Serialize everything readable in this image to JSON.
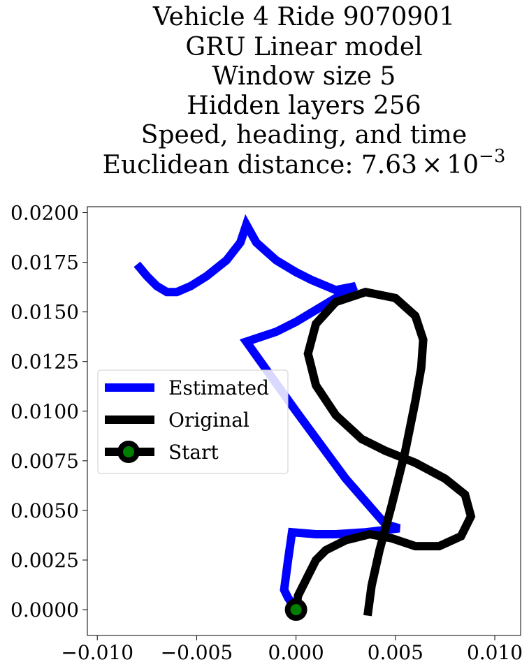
{
  "chart_data": {
    "type": "line",
    "title": {
      "lines": [
        "Vehicle 4 Ride 9070901",
        "GRU Linear model",
        "Window size 5",
        "Hidden layers 256",
        "Speed, heading, and time"
      ],
      "last_prefix": "Euclidean distance: 7.63",
      "last_times": "×",
      "last_base": "10",
      "last_exp": "−3"
    },
    "xlabel": "",
    "ylabel": "",
    "xlim": [
      -0.0105,
      0.0113
    ],
    "ylim": [
      -0.0013,
      0.0203
    ],
    "xticks": [
      -0.01,
      -0.005,
      0.0,
      0.005,
      0.01
    ],
    "xtick_labels": [
      "−0.010",
      "−0.005",
      "0.000",
      "0.005",
      "0.010"
    ],
    "yticks": [
      0.0,
      0.0025,
      0.005,
      0.0075,
      0.01,
      0.0125,
      0.015,
      0.0175,
      0.02
    ],
    "ytick_labels": [
      "0.0000",
      "0.0025",
      "0.0050",
      "0.0075",
      "0.0100",
      "0.0125",
      "0.0150",
      "0.0175",
      "0.0200"
    ],
    "grid": false,
    "legend_position": "center-left",
    "series": [
      {
        "name": "Estimated",
        "color": "#0000ff",
        "points": [
          [
            -0.008,
            0.0174
          ],
          [
            -0.0075,
            0.0168
          ],
          [
            -0.007,
            0.0163
          ],
          [
            -0.0065,
            0.016
          ],
          [
            -0.006,
            0.016
          ],
          [
            -0.0053,
            0.0163
          ],
          [
            -0.0045,
            0.0168
          ],
          [
            -0.0035,
            0.0176
          ],
          [
            -0.0028,
            0.0185
          ],
          [
            -0.0025,
            0.0194
          ],
          [
            -0.002,
            0.0185
          ],
          [
            -0.001,
            0.0176
          ],
          [
            0.0,
            0.017
          ],
          [
            0.0008,
            0.0166
          ],
          [
            0.002,
            0.0161
          ],
          [
            0.003,
            0.0163
          ],
          [
            0.002,
            0.0157
          ],
          [
            0.001,
            0.0151
          ],
          [
            0.0,
            0.0145
          ],
          [
            -0.001,
            0.014
          ],
          [
            -0.0025,
            0.0135
          ],
          [
            0.0,
            0.01
          ],
          [
            0.0025,
            0.0066
          ],
          [
            0.0045,
            0.0043
          ],
          [
            0.0052,
            0.0041
          ],
          [
            0.0035,
            0.0039
          ],
          [
            0.002,
            0.0038
          ],
          [
            0.001,
            0.0038
          ],
          [
            -0.0002,
            0.0039
          ],
          [
            -0.0004,
            0.0025
          ],
          [
            -0.0006,
            0.001
          ],
          [
            -0.0004,
            0.0006
          ],
          [
            0.0,
            0.0
          ]
        ]
      },
      {
        "name": "Original",
        "color": "#000000",
        "points": [
          [
            0.0,
            0.0
          ],
          [
            0.0001,
            0.0007
          ],
          [
            0.0005,
            0.0015
          ],
          [
            0.001,
            0.0025
          ],
          [
            0.0015,
            0.003
          ],
          [
            0.0025,
            0.0035
          ],
          [
            0.0037,
            0.0038
          ],
          [
            0.0048,
            0.0036
          ],
          [
            0.006,
            0.0032
          ],
          [
            0.0072,
            0.0032
          ],
          [
            0.0083,
            0.0037
          ],
          [
            0.0088,
            0.0047
          ],
          [
            0.0085,
            0.0058
          ],
          [
            0.0075,
            0.0066
          ],
          [
            0.006,
            0.0074
          ],
          [
            0.0045,
            0.008
          ],
          [
            0.0033,
            0.0086
          ],
          [
            0.002,
            0.0098
          ],
          [
            0.001,
            0.0113
          ],
          [
            0.0006,
            0.0129
          ],
          [
            0.001,
            0.0144
          ],
          [
            0.002,
            0.0155
          ],
          [
            0.0035,
            0.016
          ],
          [
            0.005,
            0.0157
          ],
          [
            0.006,
            0.0148
          ],
          [
            0.0064,
            0.0136
          ],
          [
            0.0063,
            0.0122
          ],
          [
            0.006,
            0.0105
          ],
          [
            0.0055,
            0.008
          ],
          [
            0.0048,
            0.0052
          ],
          [
            0.0042,
            0.003
          ],
          [
            0.0038,
            0.0012
          ],
          [
            0.0036,
            -0.0003
          ]
        ]
      }
    ],
    "start_point": {
      "name": "Start",
      "x": 0.0,
      "y": 0.0,
      "line_color": "#000000",
      "marker_fill": "#008000",
      "marker_edge": "#000000"
    }
  }
}
